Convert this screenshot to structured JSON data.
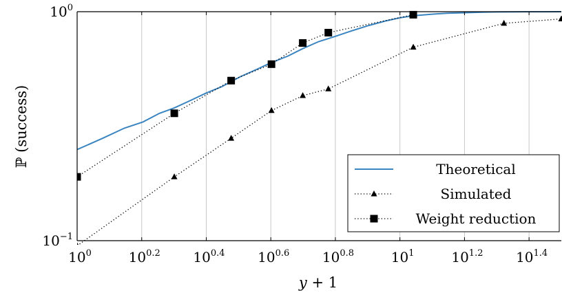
{
  "chart_data": {
    "type": "line",
    "x_scale": "log10",
    "y_scale": "log10",
    "xlim": [
      1,
      31.62
    ],
    "ylim": [
      0.1,
      1
    ],
    "grid": {
      "x": true,
      "y": false
    },
    "legend_position": "bottom-right",
    "xlabel": "y + 1",
    "ylabel": "ℙ (success)",
    "x_ticks": [
      {
        "value": 1,
        "base": "10",
        "exp": "0"
      },
      {
        "value": 1.585,
        "base": "10",
        "exp": "0.2"
      },
      {
        "value": 2.512,
        "base": "10",
        "exp": "0.4"
      },
      {
        "value": 3.981,
        "base": "10",
        "exp": "0.6"
      },
      {
        "value": 6.31,
        "base": "10",
        "exp": "0.8"
      },
      {
        "value": 10,
        "base": "10",
        "exp": "1"
      },
      {
        "value": 15.85,
        "base": "10",
        "exp": "1.2"
      },
      {
        "value": 25.12,
        "base": "10",
        "exp": "1.4"
      }
    ],
    "y_ticks": [
      {
        "value": 0.1,
        "base": "10",
        "exp": "−1"
      },
      {
        "value": 1,
        "base": "10",
        "exp": "0"
      }
    ],
    "series": [
      {
        "name": "Theoretical",
        "style": "solid",
        "color": "#3a84c0",
        "x": [
          1,
          1.2,
          1.4,
          1.6,
          1.8,
          2,
          2.25,
          2.5,
          2.8,
          3.2,
          3.6,
          4,
          4.5,
          5,
          5.6,
          6.3,
          7,
          8,
          9,
          10,
          11,
          12.5,
          14,
          16,
          18,
          20,
          22.5,
          25,
          28,
          31.62
        ],
        "y": [
          0.25,
          0.28,
          0.31,
          0.33,
          0.36,
          0.38,
          0.41,
          0.44,
          0.47,
          0.52,
          0.56,
          0.6,
          0.64,
          0.69,
          0.74,
          0.78,
          0.82,
          0.87,
          0.91,
          0.94,
          0.96,
          0.975,
          0.985,
          0.99,
          0.995,
          0.997,
          0.998,
          0.999,
          0.999,
          1.0
        ]
      },
      {
        "name": "Simulated",
        "style": "dotted",
        "marker": "triangle",
        "color": "#000000",
        "x": [
          1,
          2,
          3,
          4,
          5,
          6,
          11,
          21,
          31.62
        ],
        "y": [
          0.095,
          0.19,
          0.28,
          0.37,
          0.43,
          0.46,
          0.7,
          0.89,
          0.93
        ]
      },
      {
        "name": "Weight reduction",
        "style": "dotted",
        "marker": "square",
        "color": "#000000",
        "x": [
          1,
          2,
          3,
          4,
          5,
          6,
          11
        ],
        "y": [
          0.19,
          0.36,
          0.5,
          0.59,
          0.73,
          0.81,
          0.97
        ]
      }
    ]
  }
}
